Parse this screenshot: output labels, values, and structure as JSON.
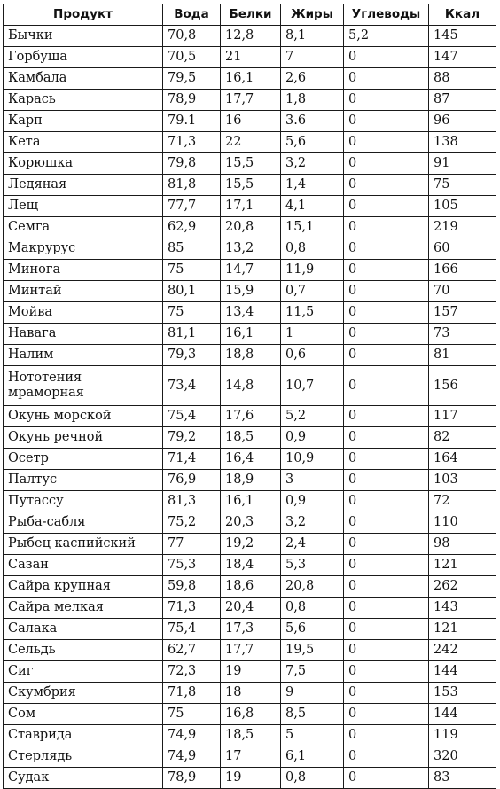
{
  "table": {
    "headers": [
      "Продукт",
      "Вода",
      "Белки",
      "Жиры",
      "Углеводы",
      "Ккал"
    ],
    "rows": [
      [
        "Бычки",
        "70,8",
        "12,8",
        "8,1",
        "5,2",
        "145"
      ],
      [
        "Горбуша",
        "70,5",
        "21",
        "7",
        "0",
        "147"
      ],
      [
        "Камбала",
        "79,5",
        "16,1",
        "2,6",
        "0",
        "88"
      ],
      [
        "Карась",
        "78,9",
        "17,7",
        "1,8",
        "0",
        "87"
      ],
      [
        "Карп",
        "79.1",
        "16",
        "3.6",
        "0",
        "96"
      ],
      [
        "Кета",
        "71,3",
        "22",
        "5,6",
        "0",
        "138"
      ],
      [
        "Корюшка",
        "79,8",
        "15,5",
        "3,2",
        "0",
        "91"
      ],
      [
        "Ледяная",
        "81,8",
        "15,5",
        "1,4",
        "0",
        "75"
      ],
      [
        "Лещ",
        "77,7",
        "17,1",
        "4,1",
        "0",
        "105"
      ],
      [
        "Семга",
        "62,9",
        "20,8",
        "15,1",
        "0",
        "219"
      ],
      [
        "Макрурус",
        "85",
        "13,2",
        "0,8",
        "0",
        "60"
      ],
      [
        "Минога",
        "75",
        "14,7",
        "11,9",
        "0",
        "166"
      ],
      [
        "Минтай",
        "80,1",
        "15,9",
        "0,7",
        "0",
        "70"
      ],
      [
        "Мойва",
        "75",
        "13,4",
        "11,5",
        "0",
        "157"
      ],
      [
        "Навага",
        "81,1",
        "16,1",
        "1",
        "0",
        "73"
      ],
      [
        "Налим",
        "79,3",
        "18,8",
        "0,6",
        "0",
        "81"
      ],
      [
        "Нототения мраморная",
        "73,4",
        "14,8",
        "10,7",
        "0",
        "156"
      ],
      [
        "Окунь морской",
        "75,4",
        "17,6",
        "5,2",
        "0",
        "117"
      ],
      [
        "Окунь речной",
        "79,2",
        "18,5",
        "0,9",
        "0",
        "82"
      ],
      [
        "Осетр",
        "71,4",
        "16,4",
        "10,9",
        "0",
        "164"
      ],
      [
        "Палтус",
        "76,9",
        "18,9",
        "3",
        "0",
        "103"
      ],
      [
        "Путассу",
        "81,3",
        "16,1",
        "0,9",
        "0",
        "72"
      ],
      [
        "Рыба-сабля",
        "75,2",
        "20,3",
        "3,2",
        "0",
        "110"
      ],
      [
        "Рыбец каспийский",
        "77",
        "19,2",
        "2,4",
        "0",
        "98"
      ],
      [
        "Сазан",
        "75,3",
        "18,4",
        "5,3",
        "0",
        "121"
      ],
      [
        "Сайра крупная",
        "59,8",
        "18,6",
        "20,8",
        "0",
        "262"
      ],
      [
        "Сайра мелкая",
        "71,3",
        "20,4",
        "0,8",
        "0",
        "143"
      ],
      [
        "Салака",
        "75,4",
        "17,3",
        "5,6",
        "0",
        "121"
      ],
      [
        "Сельдь",
        "62,7",
        "17,7",
        "19,5",
        "0",
        "242"
      ],
      [
        "Сиг",
        "72,3",
        "19",
        "7,5",
        "0",
        "144"
      ],
      [
        "Скумбрия",
        "71,8",
        "18",
        "9",
        "0",
        "153"
      ],
      [
        "Сом",
        "75",
        "16,8",
        "8,5",
        "0",
        "144"
      ],
      [
        "Ставрида",
        "74,9",
        "18,5",
        "5",
        "0",
        "119"
      ],
      [
        "Стерлядь",
        "74,9",
        "17",
        "6,1",
        "0",
        "320"
      ],
      [
        "Судак",
        "78,9",
        "19",
        "0,8",
        "0",
        "83"
      ]
    ]
  }
}
